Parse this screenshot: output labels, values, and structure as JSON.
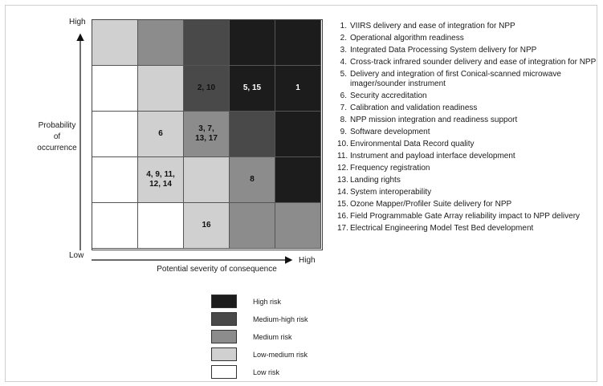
{
  "axes": {
    "y_high": "High",
    "y_low": "Low",
    "x_high": "High",
    "y_title": "Probability\nof\noccurrence",
    "x_title": "Potential severity of consequence"
  },
  "colors": {
    "high": "#1c1c1c",
    "medium_high": "#494949",
    "medium": "#8c8c8c",
    "low_medium": "#d0d0d0",
    "low": "#ffffff"
  },
  "matrix": {
    "rows": [
      [
        {
          "level": "low_medium",
          "label": ""
        },
        {
          "level": "medium",
          "label": ""
        },
        {
          "level": "medium_high",
          "label": ""
        },
        {
          "level": "high",
          "label": ""
        },
        {
          "level": "high",
          "label": ""
        }
      ],
      [
        {
          "level": "low",
          "label": ""
        },
        {
          "level": "low_medium",
          "label": ""
        },
        {
          "level": "medium_high",
          "label": "2, 10"
        },
        {
          "level": "high",
          "label": "5, 15"
        },
        {
          "level": "high",
          "label": "1"
        }
      ],
      [
        {
          "level": "low",
          "label": ""
        },
        {
          "level": "low_medium",
          "label": "6"
        },
        {
          "level": "medium",
          "label": "3, 7,\n13, 17"
        },
        {
          "level": "medium_high",
          "label": ""
        },
        {
          "level": "high",
          "label": ""
        }
      ],
      [
        {
          "level": "low",
          "label": ""
        },
        {
          "level": "low_medium",
          "label": "4, 9, 11,\n12, 14"
        },
        {
          "level": "low_medium",
          "label": ""
        },
        {
          "level": "medium",
          "label": "8"
        },
        {
          "level": "high",
          "label": ""
        }
      ],
      [
        {
          "level": "low",
          "label": ""
        },
        {
          "level": "low",
          "label": ""
        },
        {
          "level": "low_medium",
          "label": "16"
        },
        {
          "level": "medium",
          "label": ""
        },
        {
          "level": "medium",
          "label": ""
        }
      ]
    ]
  },
  "risk_items": [
    {
      "num": "1.",
      "text": "VIIRS delivery and ease of integration for NPP"
    },
    {
      "num": "2.",
      "text": "Operational algorithm readiness"
    },
    {
      "num": "3.",
      "text": "Integrated Data Processing System delivery for NPP"
    },
    {
      "num": "4.",
      "text": "Cross-track infrared sounder delivery and ease of integration for NPP"
    },
    {
      "num": "5.",
      "text": "Delivery and integration of first Conical-scanned microwave imager/sounder instrument"
    },
    {
      "num": "6.",
      "text": "Security accreditation"
    },
    {
      "num": "7.",
      "text": "Calibration and validation readiness"
    },
    {
      "num": "8.",
      "text": "NPP mission integration and readiness support"
    },
    {
      "num": "9.",
      "text": "Software development"
    },
    {
      "num": "10.",
      "text": "Environmental Data Record quality"
    },
    {
      "num": "11.",
      "text": "Instrument and payload interface development"
    },
    {
      "num": "12.",
      "text": "Frequency registration"
    },
    {
      "num": "13.",
      "text": "Landing rights"
    },
    {
      "num": "14.",
      "text": "System interoperability"
    },
    {
      "num": "15.",
      "text": "Ozone Mapper/Profiler Suite delivery for NPP"
    },
    {
      "num": "16.",
      "text": "Field Programmable Gate Array reliability impact to NPP delivery"
    },
    {
      "num": "17.",
      "text": "Electrical Engineering Model Test Bed development"
    }
  ],
  "legend": [
    {
      "level": "high",
      "label": "High risk"
    },
    {
      "level": "medium_high",
      "label": "Medium-high risk"
    },
    {
      "level": "medium",
      "label": "Medium risk"
    },
    {
      "level": "low_medium",
      "label": "Low-medium risk"
    },
    {
      "level": "low",
      "label": "Low risk"
    }
  ]
}
